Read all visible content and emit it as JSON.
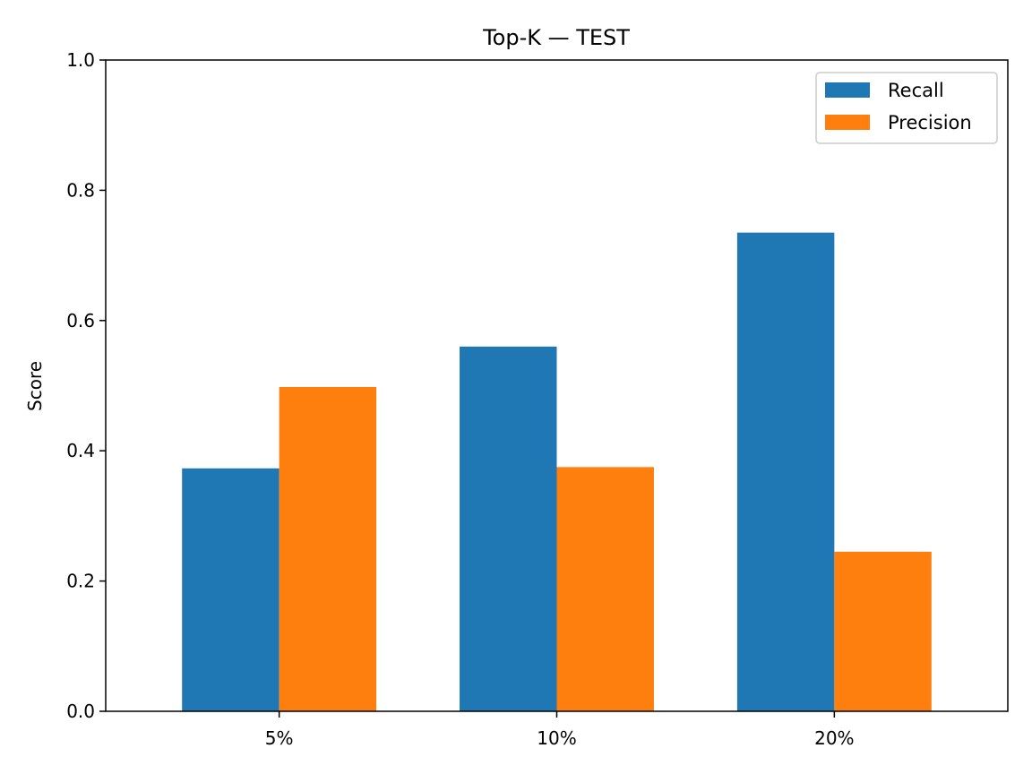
{
  "chart_data": {
    "type": "bar",
    "title": "Top-K — TEST",
    "xlabel": "",
    "ylabel": "Score",
    "categories": [
      "5%",
      "10%",
      "20%"
    ],
    "series": [
      {
        "name": "Recall",
        "color": "#1f77b4",
        "values": [
          0.373,
          0.56,
          0.735
        ]
      },
      {
        "name": "Precision",
        "color": "#ff7f0e",
        "values": [
          0.498,
          0.375,
          0.245
        ]
      }
    ],
    "ylim": [
      0,
      1.0
    ],
    "yticks": [
      "0.0",
      "0.2",
      "0.4",
      "0.6",
      "0.8",
      "1.0"
    ],
    "grid": false,
    "legend_position": "top-right"
  }
}
